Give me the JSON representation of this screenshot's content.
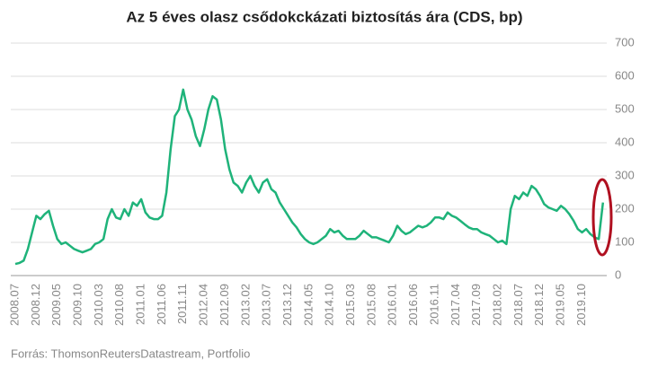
{
  "chart_data": {
    "type": "line",
    "title": "Az 5 éves olasz csődokckázati biztosítás ára (CDS, bp)",
    "source": "Forrás: ThomsonReutersDatastream, Portfolio",
    "x": [
      "2008.07",
      "2008.08",
      "2008.09",
      "2008.10",
      "2008.11",
      "2008.12",
      "2009.01",
      "2009.02",
      "2009.03",
      "2009.04",
      "2009.05",
      "2009.06",
      "2009.07",
      "2009.08",
      "2009.09",
      "2009.10",
      "2009.11",
      "2009.12",
      "2010.01",
      "2010.02",
      "2010.03",
      "2010.04",
      "2010.05",
      "2010.06",
      "2010.07",
      "2010.08",
      "2010.09",
      "2010.10",
      "2010.11",
      "2010.12",
      "2011.01",
      "2011.02",
      "2011.03",
      "2011.04",
      "2011.05",
      "2011.06",
      "2011.07",
      "2011.08",
      "2011.09",
      "2011.10",
      "2011.11",
      "2011.12",
      "2012.01",
      "2012.02",
      "2012.03",
      "2012.04",
      "2012.05",
      "2012.06",
      "2012.07",
      "2012.08",
      "2012.09",
      "2012.10",
      "2012.11",
      "2012.12",
      "2013.01",
      "2013.02",
      "2013.03",
      "2013.04",
      "2013.05",
      "2013.06",
      "2013.07",
      "2013.08",
      "2013.09",
      "2013.10",
      "2013.11",
      "2013.12",
      "2014.01",
      "2014.02",
      "2014.03",
      "2014.04",
      "2014.05",
      "2014.06",
      "2014.07",
      "2014.08",
      "2014.09",
      "2014.10",
      "2014.11",
      "2014.12",
      "2015.01",
      "2015.02",
      "2015.03",
      "2015.04",
      "2015.05",
      "2015.06",
      "2015.07",
      "2015.08",
      "2015.09",
      "2015.10",
      "2015.11",
      "2015.12",
      "2016.01",
      "2016.02",
      "2016.03",
      "2016.04",
      "2016.05",
      "2016.06",
      "2016.07",
      "2016.08",
      "2016.09",
      "2016.10",
      "2016.11",
      "2016.12",
      "2017.01",
      "2017.02",
      "2017.03",
      "2017.04",
      "2017.05",
      "2017.06",
      "2017.07",
      "2017.08",
      "2017.09",
      "2017.10",
      "2017.11",
      "2017.12",
      "2018.01",
      "2018.02",
      "2018.03",
      "2018.04",
      "2018.05",
      "2018.06",
      "2018.07",
      "2018.08",
      "2018.09",
      "2018.10",
      "2018.11",
      "2018.12",
      "2019.01",
      "2019.02",
      "2019.03",
      "2019.04",
      "2019.05",
      "2019.06",
      "2019.07",
      "2019.08",
      "2019.09",
      "2019.10",
      "2019.11",
      "2019.12",
      "2020.01",
      "2020.02",
      "2020.03"
    ],
    "series": [
      {
        "color": "#1fb37a",
        "values": [
          35,
          38,
          45,
          80,
          130,
          180,
          170,
          185,
          195,
          150,
          110,
          95,
          100,
          90,
          80,
          75,
          70,
          75,
          80,
          95,
          100,
          110,
          170,
          200,
          175,
          170,
          200,
          180,
          220,
          210,
          230,
          190,
          175,
          170,
          170,
          180,
          250,
          380,
          480,
          500,
          560,
          500,
          470,
          420,
          390,
          440,
          500,
          540,
          530,
          470,
          380,
          320,
          280,
          270,
          250,
          280,
          300,
          270,
          250,
          280,
          290,
          260,
          250,
          220,
          200,
          180,
          160,
          145,
          125,
          110,
          100,
          95,
          100,
          110,
          120,
          140,
          130,
          135,
          120,
          110,
          110,
          110,
          120,
          135,
          125,
          115,
          115,
          110,
          105,
          100,
          120,
          150,
          135,
          125,
          130,
          140,
          150,
          145,
          150,
          160,
          175,
          175,
          170,
          190,
          180,
          175,
          165,
          155,
          145,
          140,
          140,
          130,
          125,
          120,
          110,
          100,
          105,
          95,
          200,
          240,
          230,
          250,
          240,
          270,
          260,
          240,
          215,
          205,
          200,
          195,
          210,
          200,
          185,
          165,
          140,
          130,
          140,
          125,
          115,
          110,
          220
        ]
      }
    ],
    "xticks": [
      "2008.07",
      "2008.12",
      "2009.05",
      "2009.10",
      "2010.03",
      "2010.08",
      "2011.01",
      "2011.06",
      "2011.11",
      "2012.04",
      "2012.09",
      "2013.02",
      "2013.07",
      "2013.12",
      "2014.05",
      "2014.10",
      "2015.03",
      "2015.08",
      "2016.01",
      "2016.06",
      "2016.11",
      "2017.04",
      "2017.09",
      "2018.02",
      "2018.07",
      "2018.12",
      "2019.05",
      "2019.10"
    ],
    "ylim": [
      0,
      700
    ],
    "yticks": [
      0,
      100,
      200,
      300,
      400,
      500,
      600,
      700
    ],
    "grid": true
  }
}
